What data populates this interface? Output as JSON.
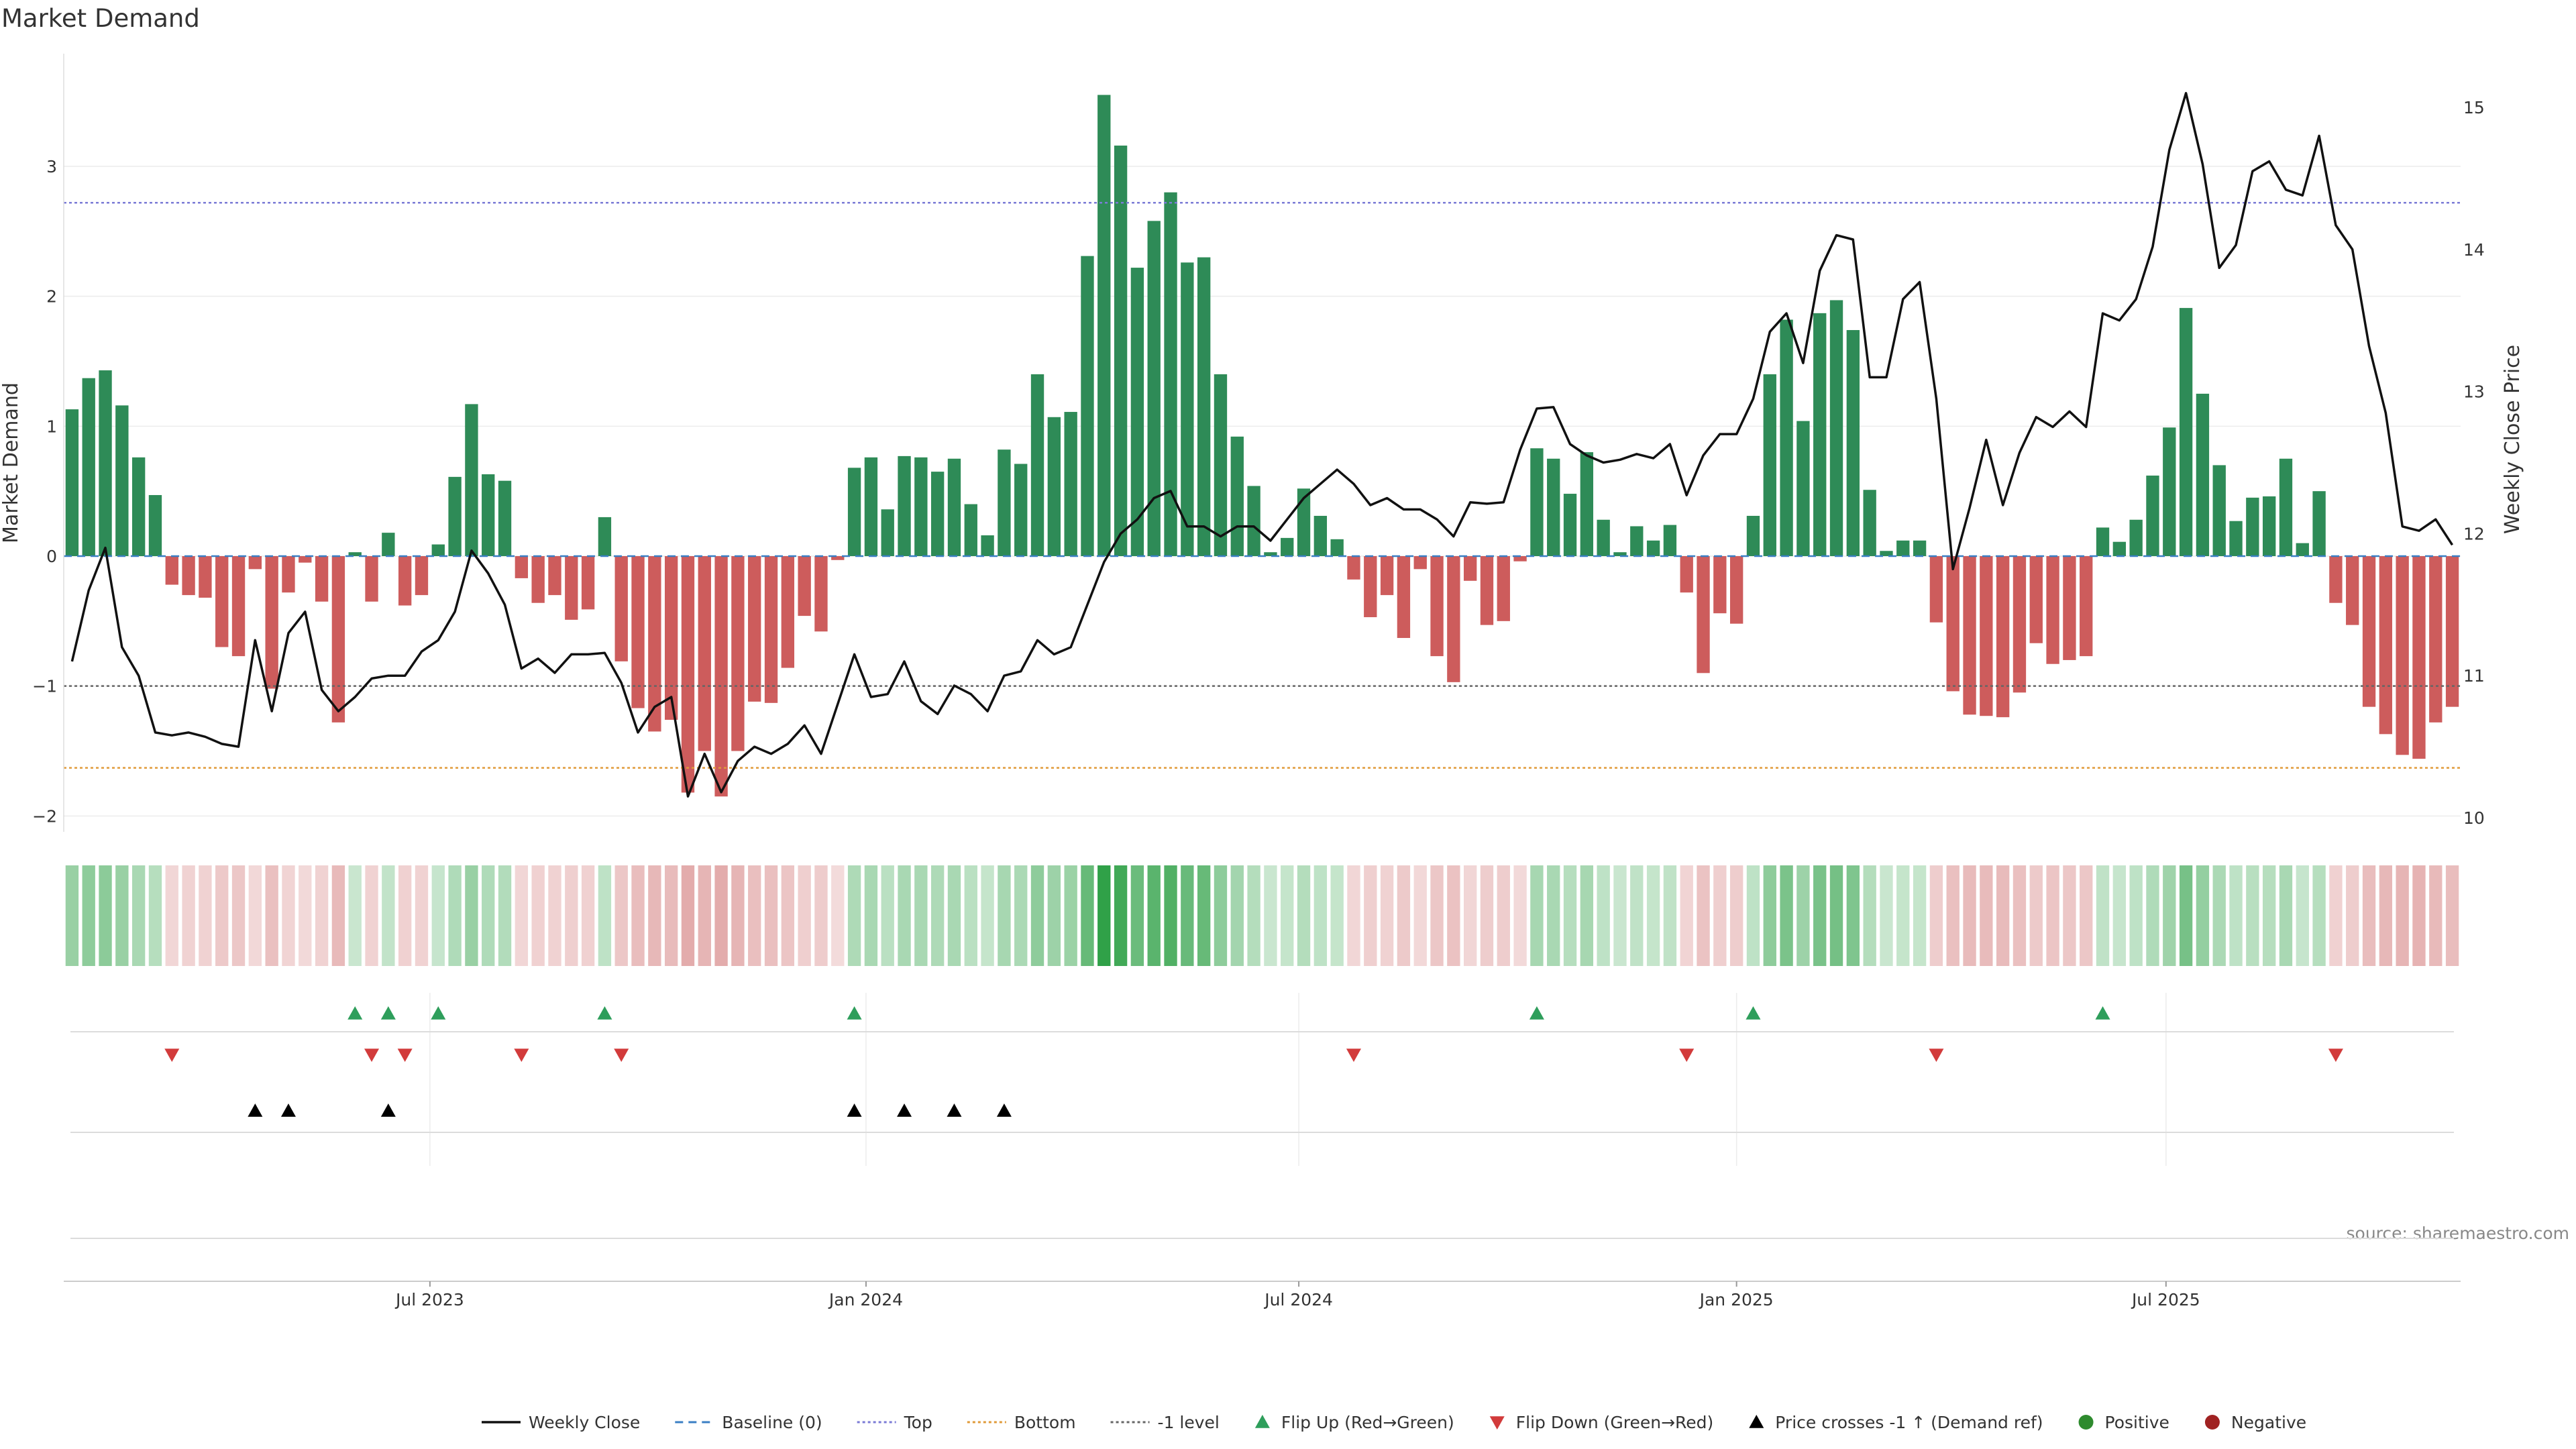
{
  "chart_data": {
    "type": "bar",
    "title": "Market Demand",
    "ylabel_left": "Market Demand",
    "ylabel_right": "Weekly Close Price",
    "source": "source: sharemaestro.com",
    "ylim_left": [
      -2.25,
      3.9
    ],
    "ylim_right": [
      9.95,
      15.3
    ],
    "yticks_left": [
      {
        "v": 3,
        "t": "3"
      },
      {
        "v": 2,
        "t": "2"
      },
      {
        "v": 1,
        "t": "1"
      },
      {
        "v": 0,
        "t": "0"
      },
      {
        "v": -1,
        "t": "−1"
      },
      {
        "v": -2,
        "t": "−2"
      }
    ],
    "yticks_right": [
      {
        "v": 15,
        "t": "15"
      },
      {
        "v": 14,
        "t": "14"
      },
      {
        "v": 13,
        "t": "13"
      },
      {
        "v": 12,
        "t": "12"
      },
      {
        "v": 11,
        "t": "11"
      },
      {
        "v": 10,
        "t": "10"
      }
    ],
    "xticks": [
      {
        "i": 21.5,
        "t": "Jul 2023"
      },
      {
        "i": 47.7,
        "t": "Jan 2024"
      },
      {
        "i": 73.7,
        "t": "Jul 2024"
      },
      {
        "i": 100,
        "t": "Jan 2025"
      },
      {
        "i": 125.8,
        "t": "Jul 2025"
      }
    ],
    "ref_lines": {
      "top": 2.72,
      "bottom": -1.63,
      "minus_one": -1,
      "baseline": 0
    },
    "demand": [
      1.13,
      1.37,
      1.43,
      1.16,
      0.76,
      0.47,
      -0.22,
      -0.3,
      -0.32,
      -0.7,
      -0.77,
      -0.1,
      -1.02,
      -0.28,
      -0.05,
      -0.35,
      -1.28,
      0.03,
      -0.35,
      0.18,
      -0.38,
      -0.3,
      0.09,
      0.61,
      1.17,
      0.63,
      0.58,
      -0.17,
      -0.36,
      -0.3,
      -0.49,
      -0.41,
      0.3,
      -0.81,
      -1.17,
      -1.35,
      -1.26,
      -1.82,
      -1.5,
      -1.85,
      -1.5,
      -1.12,
      -1.13,
      -0.86,
      -0.46,
      -0.58,
      -0.03,
      0.68,
      0.76,
      0.36,
      0.77,
      0.76,
      0.65,
      0.75,
      0.4,
      0.16,
      0.82,
      0.71,
      1.4,
      1.07,
      1.11,
      2.31,
      3.55,
      3.16,
      2.22,
      2.58,
      2.8,
      2.26,
      2.3,
      1.4,
      0.92,
      0.54,
      0.03,
      0.14,
      0.52,
      0.31,
      0.13,
      -0.18,
      -0.47,
      -0.3,
      -0.63,
      -0.1,
      -0.77,
      -0.97,
      -0.19,
      -0.53,
      -0.5,
      -0.04,
      0.83,
      0.75,
      0.48,
      0.8,
      0.28,
      0.03,
      0.23,
      0.12,
      0.24,
      -0.28,
      -0.9,
      -0.44,
      -0.52,
      0.31,
      1.4,
      1.82,
      1.04,
      1.87,
      1.97,
      1.74,
      0.51,
      0.04,
      0.12,
      0.12,
      -0.51,
      -1.04,
      -1.22,
      -1.23,
      -1.24,
      -1.05,
      -0.67,
      -0.83,
      -0.8,
      -0.77,
      0.22,
      0.11,
      0.28,
      0.62,
      0.99,
      1.91,
      1.25,
      0.7,
      0.27,
      0.45,
      0.46,
      0.75,
      0.1,
      0.5,
      -0.36,
      -0.53,
      -1.16,
      -1.37,
      -1.53,
      -1.56,
      -1.28,
      -1.16
    ],
    "price": [
      11.1,
      11.6,
      11.9,
      11.2,
      11.0,
      10.6,
      10.58,
      10.6,
      10.57,
      10.52,
      10.5,
      11.25,
      10.75,
      11.3,
      11.45,
      10.9,
      10.75,
      10.85,
      10.98,
      11.0,
      11.0,
      11.17,
      11.25,
      11.45,
      11.88,
      11.72,
      11.5,
      11.05,
      11.12,
      11.02,
      11.15,
      11.15,
      11.16,
      10.95,
      10.6,
      10.78,
      10.85,
      10.15,
      10.45,
      10.18,
      10.4,
      10.5,
      10.45,
      10.52,
      10.65,
      10.45,
      10.8,
      11.15,
      10.85,
      10.87,
      11.1,
      10.82,
      10.73,
      10.93,
      10.87,
      10.75,
      11.0,
      11.03,
      11.25,
      11.15,
      11.2,
      11.5,
      11.8,
      12.0,
      12.1,
      12.25,
      12.3,
      12.05,
      12.05,
      11.98,
      12.05,
      12.05,
      11.95,
      12.1,
      12.25,
      12.35,
      12.45,
      12.35,
      12.2,
      12.25,
      12.17,
      12.17,
      12.1,
      11.98,
      12.22,
      12.21,
      12.22,
      12.59,
      12.88,
      12.89,
      12.63,
      12.55,
      12.5,
      12.52,
      12.56,
      12.53,
      12.63,
      12.27,
      12.55,
      12.7,
      12.7,
      12.95,
      13.42,
      13.55,
      13.2,
      13.85,
      14.1,
      14.07,
      13.1,
      13.1,
      13.65,
      13.77,
      12.95,
      11.75,
      12.18,
      12.66,
      12.2,
      12.57,
      12.82,
      12.75,
      12.86,
      12.75,
      13.55,
      13.5,
      13.65,
      14.02,
      14.7,
      15.1,
      14.6,
      13.87,
      14.03,
      14.55,
      14.62,
      14.42,
      14.38,
      14.8,
      14.17,
      14.0,
      13.32,
      12.85,
      12.05,
      12.02,
      12.1,
      11.92
    ],
    "flip_up": [
      17,
      19,
      22,
      32,
      47,
      88,
      101,
      122
    ],
    "flip_down": [
      6,
      18,
      20,
      27,
      33,
      77,
      97,
      112,
      136
    ],
    "price_cross_up": [
      11,
      13,
      19,
      47,
      50,
      53,
      56
    ],
    "legend": [
      {
        "label": "Weekly Close",
        "kind": "line",
        "color": "#111111"
      },
      {
        "label": "Baseline (0)",
        "kind": "dash",
        "color": "#3a7fc4"
      },
      {
        "label": "Top",
        "kind": "dot",
        "color": "#7b7bd6"
      },
      {
        "label": "Bottom",
        "kind": "dot",
        "color": "#e09b3a"
      },
      {
        "label": "-1 level",
        "kind": "dot",
        "color": "#666666"
      },
      {
        "label": "Flip Up (Red→Green)",
        "kind": "tri-up",
        "color": "#2e9e5b"
      },
      {
        "label": "Flip Down (Green→Red)",
        "kind": "tri-down",
        "color": "#d23b3b"
      },
      {
        "label": "Price crosses -1 ↑ (Demand ref)",
        "kind": "tri-up",
        "color": "#000000"
      },
      {
        "label": "Positive",
        "kind": "dot-circle",
        "color": "#2e8b2e"
      },
      {
        "label": "Negative",
        "kind": "dot-circle",
        "color": "#a02222"
      }
    ],
    "colors": {
      "positive": "#2e8b57",
      "negative": "#cd5c5c",
      "price": "#111111"
    }
  }
}
